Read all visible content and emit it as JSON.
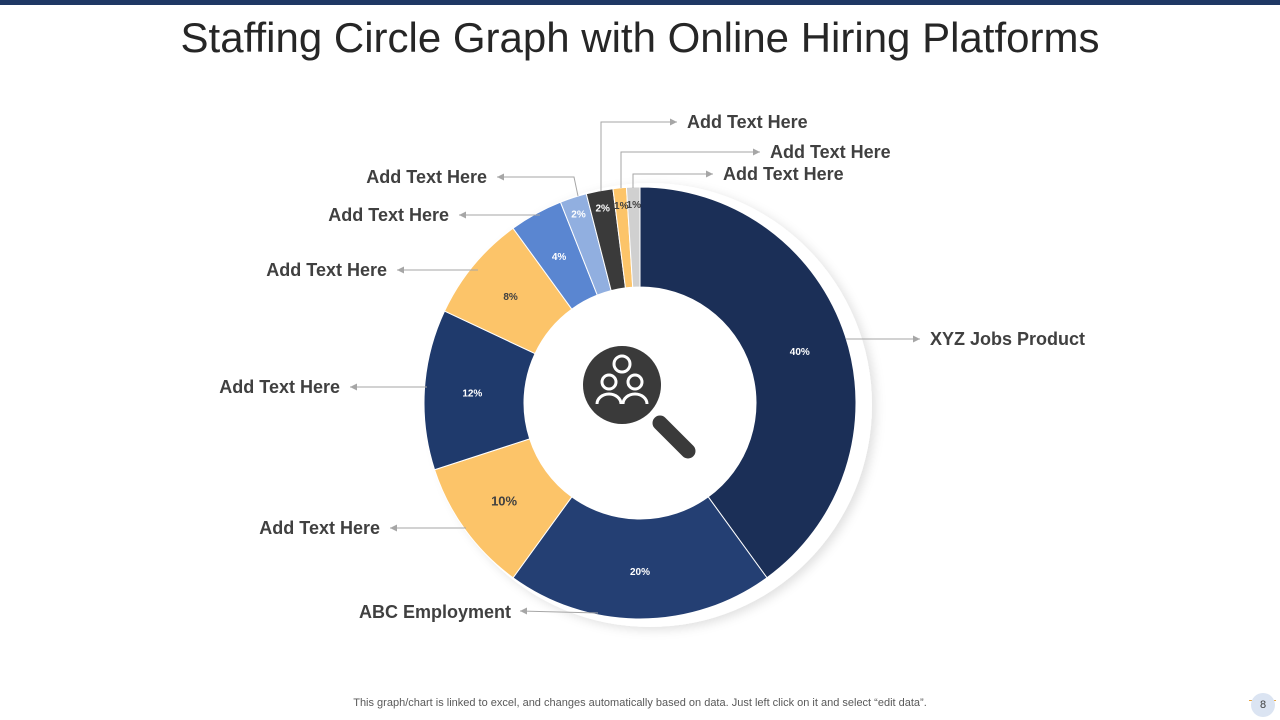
{
  "slide": {
    "title": "Staffing Circle Graph with Online Hiring Platforms",
    "footer_note": "This graph/chart is linked to excel,  and changes automatically based on data. Just left click on it and select “edit data”.",
    "page_number": "8",
    "accent_color": "#1f3864"
  },
  "center_icon": "people-search-icon",
  "chart_data": {
    "type": "pie",
    "style": "donut",
    "title": "",
    "slices": [
      {
        "label": "XYZ Jobs Product",
        "value": 40,
        "value_label": "40%",
        "color": "#1b2f57"
      },
      {
        "label": "ABC Employment",
        "value": 20,
        "value_label": "20%",
        "color": "#243f73"
      },
      {
        "label": "Add Text Here",
        "value": 10,
        "value_label": "10%",
        "color": "#fcc469"
      },
      {
        "label": "Add Text Here",
        "value": 12,
        "value_label": "12%",
        "color": "#1f3a6c"
      },
      {
        "label": "Add Text Here",
        "value": 8,
        "value_label": "8%",
        "color": "#fcc469"
      },
      {
        "label": "Add Text Here",
        "value": 4,
        "value_label": "4%",
        "color": "#5a86d1"
      },
      {
        "label": "Add Text Here",
        "value": 2,
        "value_label": "2%",
        "color": "#91afe0"
      },
      {
        "label": "Add Text Here",
        "value": 2,
        "value_label": "2%",
        "color": "#3a3a3a"
      },
      {
        "label": "Add Text Here",
        "value": 1,
        "value_label": "1%",
        "color": "#fcc469"
      },
      {
        "label": "Add Text Here",
        "value": 1,
        "value_label": "1%",
        "color": "#d0d0d0"
      }
    ]
  }
}
